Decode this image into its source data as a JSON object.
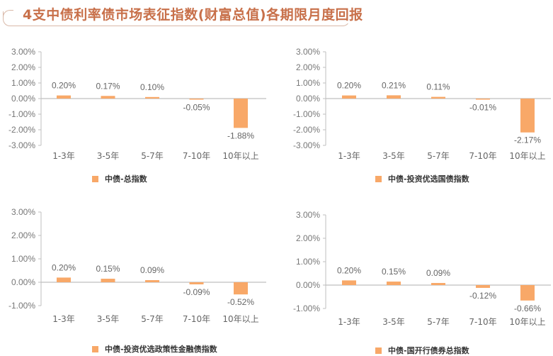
{
  "title": "4支中债利率债市场表征指数(财富总值)各期限月度回报",
  "colors": {
    "bar": "#f8a868",
    "title": "#c8704a",
    "frame": "#d9b8a8",
    "axis": "#bfbfbf",
    "text": "#666666"
  },
  "chart_data": [
    {
      "type": "bar",
      "title": "",
      "categories": [
        "1-3年",
        "3-5年",
        "5-7年",
        "7-10年",
        "10年以上"
      ],
      "series": [
        {
          "name": "中债-总指数",
          "values": [
            0.2,
            0.17,
            0.1,
            -0.05,
            -1.88
          ]
        }
      ],
      "value_labels": [
        "0.20%",
        "0.17%",
        "0.10%",
        "-0.05%",
        "-1.88%"
      ],
      "yticks": [
        "3.00%",
        "2.00%",
        "1.00%",
        "0.00%",
        "-1.00%",
        "-2.00%",
        "-3.00%"
      ],
      "ylim": [
        -3,
        3
      ],
      "xlabel": "",
      "ylabel": "",
      "grid": false,
      "legend_position": "bottom"
    },
    {
      "type": "bar",
      "title": "",
      "categories": [
        "1-3年",
        "3-5年",
        "5-7年",
        "7-10年",
        "10年以上"
      ],
      "series": [
        {
          "name": "中债-投资优选国债指数",
          "values": [
            0.2,
            0.21,
            0.11,
            -0.01,
            -2.17
          ]
        }
      ],
      "value_labels": [
        "0.20%",
        "0.21%",
        "0.11%",
        "-0.01%",
        "-2.17%"
      ],
      "yticks": [
        "3.00%",
        "2.00%",
        "1.00%",
        "0.00%",
        "-1.00%",
        "-2.00%",
        "-3.00%"
      ],
      "ylim": [
        -3,
        3
      ],
      "xlabel": "",
      "ylabel": "",
      "grid": false,
      "legend_position": "bottom"
    },
    {
      "type": "bar",
      "title": "",
      "categories": [
        "1-3年",
        "3-5年",
        "5-7年",
        "7-10年",
        "10年以上"
      ],
      "series": [
        {
          "name": "中债-投资优选政策性金融债指数",
          "values": [
            0.2,
            0.15,
            0.09,
            -0.09,
            -0.52
          ]
        }
      ],
      "value_labels": [
        "0.20%",
        "0.15%",
        "0.09%",
        "-0.09%",
        "-0.52%"
      ],
      "yticks": [
        "3.00%",
        "2.00%",
        "1.00%",
        "0.00%",
        "-1.00%"
      ],
      "ylim": [
        -1,
        3
      ],
      "xlabel": "",
      "ylabel": "",
      "grid": false,
      "legend_position": "bottom"
    },
    {
      "type": "bar",
      "title": "",
      "categories": [
        "1-3年",
        "3-5年",
        "5-7年",
        "7-10年",
        "10年以上"
      ],
      "series": [
        {
          "name": "中债-国开行债券总指数",
          "values": [
            0.2,
            0.15,
            0.09,
            -0.12,
            -0.66
          ]
        }
      ],
      "value_labels": [
        "0.20%",
        "0.15%",
        "0.09%",
        "-0.12%",
        "-0.66%"
      ],
      "yticks": [
        "3.00%",
        "2.00%",
        "1.00%",
        "0.00%",
        "-1.00%"
      ],
      "ylim": [
        -1,
        3
      ],
      "xlabel": "",
      "ylabel": "",
      "grid": false,
      "legend_position": "bottom"
    }
  ]
}
